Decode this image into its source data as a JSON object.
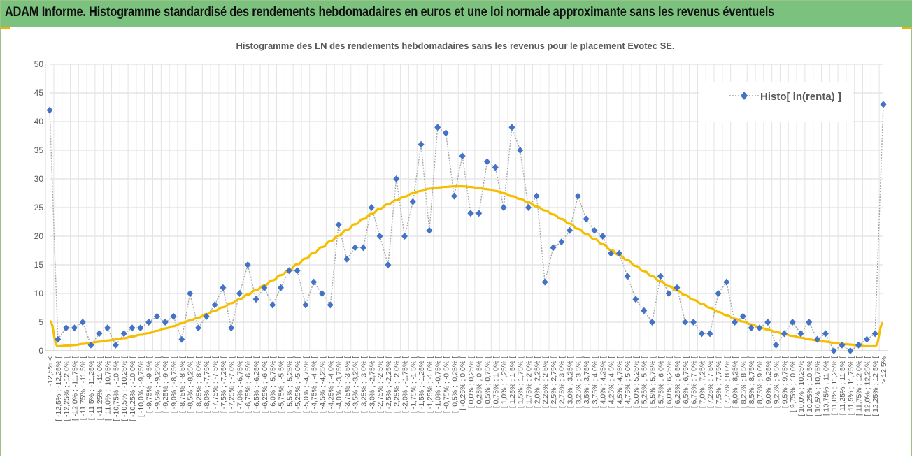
{
  "header": {
    "title": "ADAM Informe. Histogramme standardisé des rendements hebdomadaires en euros et une loi normale approximante sans les revenus éventuels"
  },
  "colors": {
    "banner": "#7ac27d",
    "marker": "#4472c4",
    "dotted_line": "#a6a6a6",
    "normal_curve": "#f5be00",
    "grid": "#d9d9d9",
    "text": "#595959"
  },
  "chart_data": {
    "type": "line",
    "title": "Histogramme des LN des rendements hebdomadaires sans les revenus pour le placement Evotec SE.",
    "ylim": [
      0,
      50
    ],
    "y_ticks": [
      "0",
      "5",
      "10",
      "15",
      "20",
      "25",
      "30",
      "35",
      "40",
      "45",
      "50"
    ],
    "legend": {
      "position": "top-right",
      "entries": [
        "Histo[ ln(renta) ]"
      ]
    },
    "grid": true,
    "categories": [
      "-12,5% <",
      "[ -12,5% ; -12,25% [",
      "[ -12,25% ; -12,0% [",
      "[ -12,0% ; -11,75% [",
      "[ -11,75% ; -11,5% [",
      "[ -11,5% ; -11,25% [",
      "[ -11,25% ; -11,0% [",
      "[ -11,0% ; -10,75% [",
      "[ -10,75% ; -10,5% [",
      "[ -10,5% ; -10,25% [",
      "[ -10,25% ; -10,0% [",
      "[ -10,0% ; -9,75% [",
      "[ -9,75% ; -9,5% [",
      "[ -9,5% ; -9,25% [",
      "[ -9,25% ; -9,0% [",
      "[ -9,0% ; -8,75% [",
      "[ -8,75% ; -8,5% [",
      "[ -8,5% ; -8,25% [",
      "[ -8,25% ; -8,0% [",
      "[ -8,0% ; -7,75% [",
      "[ -7,75% ; -7,5% [",
      "[ -7,5% ; -7,25% [",
      "[ -7,25% ; -7,0% [",
      "[ -7,0% ; -6,75% [",
      "[ -6,75% ; -6,5% [",
      "[ -6,5% ; -6,25% [",
      "[ -6,25% ; -6,0% [",
      "[ -6,0% ; -5,75% [",
      "[ -5,75% ; -5,5% [",
      "[ -5,5% ; -5,25% [",
      "[ -5,25% ; -5,0% [",
      "[ -5,0% ; -4,75% [",
      "[ -4,75% ; -4,5% [",
      "[ -4,5% ; -4,25% [",
      "[ -4,25% ; -4,0% [",
      "[ -4,0% ; -3,75% [",
      "[ -3,75% ; -3,5% [",
      "[ -3,5% ; -3,25% [",
      "[ -3,25% ; -3,0% [",
      "[ -3,0% ; -2,75% [",
      "[ -2,75% ; -2,5% [",
      "[ -2,5% ; -2,25% [",
      "[ -2,25% ; -2,0% [",
      "[ -2,0% ; -1,75% [",
      "[ -1,75% ; -1,5% [",
      "[ -1,5% ; -1,25% [",
      "[ -1,25% ; -1,0% [",
      "[ -1,0% ; -0,75% [",
      "[ -0,75% ; -0,5% [",
      "[ -0,5% ; -0,25% [",
      "[ -0,25% ; 0,0% [",
      "[ 0,0% ; 0,25% [",
      "[ 0,25% ; 0,5% [",
      "[ 0,5% ; 0,75% [",
      "[ 0,75% ; 1,0% [",
      "[ 1,0% ; 1,25% [",
      "[ 1,25% ; 1,5% [",
      "[ 1,5% ; 1,75% [",
      "[ 1,75% ; 2,0% [",
      "[ 2,0% ; 2,25% [",
      "[ 2,25% ; 2,5% [",
      "[ 2,5% ; 2,75% [",
      "[ 2,75% ; 3,0% [",
      "[ 3,0% ; 3,25% [",
      "[ 3,25% ; 3,5% [",
      "[ 3,5% ; 3,75% [",
      "[ 3,75% ; 4,0% [",
      "[ 4,0% ; 4,25% [",
      "[ 4,25% ; 4,5% [",
      "[ 4,5% ; 4,75% [",
      "[ 4,75% ; 5,0% [",
      "[ 5,0% ; 5,25% [",
      "[ 5,25% ; 5,5% [",
      "[ 5,5% ; 5,75% [",
      "[ 5,75% ; 6,0% [",
      "[ 6,0% ; 6,25% [",
      "[ 6,25% ; 6,5% [",
      "[ 6,5% ; 6,75% [",
      "[ 6,75% ; 7,0% [",
      "[ 7,0% ; 7,25% [",
      "[ 7,25% ; 7,5% [",
      "[ 7,5% ; 7,75% [",
      "[ 7,75% ; 8,0% [",
      "[ 8,0% ; 8,25% [",
      "[ 8,25% ; 8,5% [",
      "[ 8,5% ; 8,75% [",
      "[ 8,75% ; 9,0% [",
      "[ 9,0% ; 9,25% [",
      "[ 9,25% ; 9,5% [",
      "[ 9,5% ; 9,75% [",
      "[ 9,75% ; 10,0% [",
      "[ 10,0% ; 10,25% [",
      "[ 10,25% ; 10,5% [",
      "[ 10,5% ; 10,75% [",
      "[ 10,75% ; 11,0% [",
      "[ 11,0% ; 11,25% [",
      "[ 11,25% ; 11,5% [",
      "[ 11,5% ; 11,75% [",
      "[ 11,75% ; 12,0% [",
      "[ 12,0% ; 12,25% [",
      "[ 12,25% ; 12,5% [",
      "> 12,5%"
    ],
    "series": [
      {
        "name": "Histo[ ln(renta) ]",
        "style": "markers-dotted",
        "values": [
          42,
          2,
          4,
          4,
          5,
          1,
          3,
          4,
          1,
          3,
          4,
          4,
          5,
          6,
          5,
          6,
          2,
          10,
          4,
          6,
          8,
          11,
          4,
          10,
          15,
          9,
          11,
          8,
          11,
          14,
          14,
          8,
          12,
          10,
          8,
          22,
          16,
          18,
          18,
          25,
          20,
          15,
          30,
          20,
          26,
          36,
          21,
          39,
          38,
          27,
          34,
          24,
          24,
          33,
          32,
          25,
          39,
          35,
          25,
          27,
          12,
          18,
          19,
          21,
          27,
          23,
          21,
          20,
          17,
          17,
          13,
          9,
          7,
          5,
          13,
          10,
          11,
          5,
          5,
          3,
          3,
          10,
          12,
          5,
          6,
          4,
          4,
          5,
          1,
          3,
          5,
          3,
          5,
          2,
          3,
          0,
          1,
          0,
          1,
          2,
          3,
          43
        ]
      },
      {
        "style": "smooth",
        "values": [
          5.2,
          0.8,
          0.9,
          1.0,
          1.2,
          1.4,
          1.6,
          1.8,
          2.0,
          2.2,
          2.5,
          2.8,
          3.1,
          3.5,
          3.9,
          4.3,
          4.8,
          5.3,
          5.8,
          6.4,
          7.0,
          7.6,
          8.3,
          9.0,
          9.8,
          10.6,
          11.4,
          12.3,
          13.2,
          14.1,
          15.1,
          16.1,
          17.1,
          18.1,
          19.1,
          20.1,
          21.1,
          22.1,
          23.0,
          23.9,
          24.8,
          25.6,
          26.3,
          26.9,
          27.5,
          27.9,
          28.3,
          28.5,
          28.6,
          28.7,
          28.7,
          28.6,
          28.4,
          28.2,
          27.9,
          27.5,
          27.0,
          26.5,
          25.9,
          25.2,
          24.5,
          23.8,
          23.0,
          22.2,
          21.3,
          20.4,
          19.5,
          18.6,
          17.6,
          16.7,
          15.8,
          14.8,
          13.9,
          13.0,
          12.1,
          11.3,
          10.5,
          9.7,
          8.9,
          8.2,
          7.5,
          6.8,
          6.2,
          5.6,
          5.1,
          4.6,
          4.1,
          3.7,
          3.3,
          2.9,
          2.6,
          2.3,
          2.0,
          1.8,
          1.6,
          1.4,
          1.2,
          1.1,
          0.9,
          0.8,
          0.8,
          4.9
        ]
      }
    ]
  }
}
